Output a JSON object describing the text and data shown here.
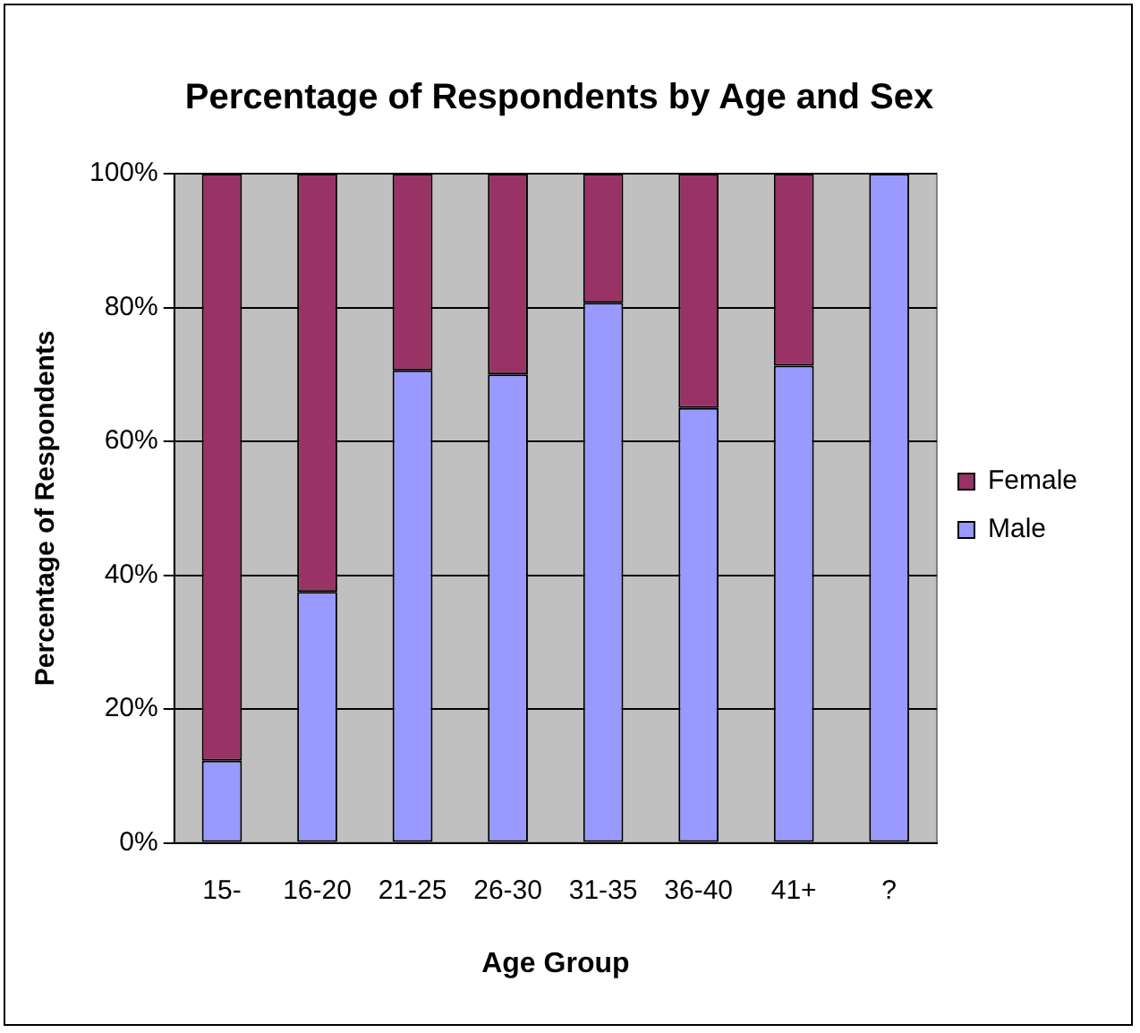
{
  "chart_data": {
    "type": "bar",
    "title": "Percentage of Respondents by Age and Sex",
    "xlabel": "Age Group",
    "ylabel": "Percentage of Respondents",
    "categories": [
      "15-",
      "16-20",
      "21-25",
      "26-30",
      "31-35",
      "36-40",
      "41+",
      "?"
    ],
    "stacked": true,
    "series": [
      {
        "name": "Male",
        "color": "#9999ff",
        "values": [
          12.3,
          37.5,
          70.6,
          70.0,
          80.7,
          65.0,
          71.3,
          100
        ]
      },
      {
        "name": "Female",
        "color": "#993366",
        "values": [
          87.7,
          62.5,
          29.4,
          30.0,
          19.3,
          35.0,
          28.7,
          0
        ]
      }
    ],
    "ylim": [
      0,
      100
    ],
    "yticks": [
      {
        "value": 0,
        "label": "0%"
      },
      {
        "value": 20,
        "label": "20%"
      },
      {
        "value": 40,
        "label": "40%"
      },
      {
        "value": 60,
        "label": "60%"
      },
      {
        "value": 80,
        "label": "80%"
      },
      {
        "value": 100,
        "label": "100%"
      }
    ],
    "grid": "y",
    "legend": "right"
  }
}
